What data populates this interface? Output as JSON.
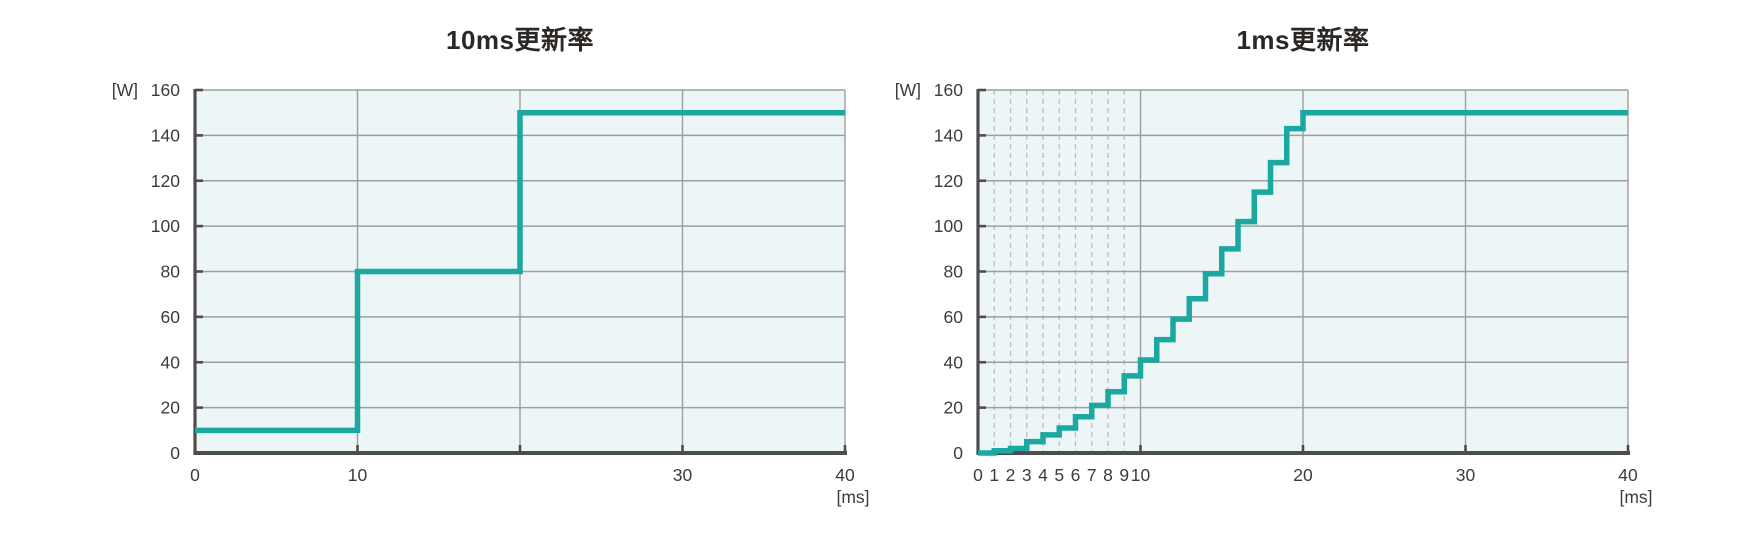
{
  "style": {
    "line_color": "#1aa8a0",
    "plot_background": "#edf6f7",
    "grid_color": "#9e9e9e",
    "dashed_grid_color": "#bcbcbc",
    "axis_color": "#4c4c4c",
    "label_color": "#3c3c3c",
    "title_color": "#2b2724",
    "page_background": "#ffffff"
  },
  "chart_data": [
    {
      "type": "line",
      "line_style": "step-hold",
      "title": "10ms更新率",
      "update_rate_ms": 10,
      "ylabel": "[W]",
      "xlabel": "[ms]",
      "xlim": [
        0,
        40
      ],
      "ylim": [
        0,
        160
      ],
      "grid": true,
      "legend": "none",
      "y_tick_labels": [
        0,
        20,
        40,
        60,
        80,
        100,
        120,
        140,
        160
      ],
      "x_solid_gridlines": [
        10,
        20,
        30,
        40
      ],
      "x_dashed_gridlines": [],
      "x_tick_marks": [
        10,
        20,
        30,
        40
      ],
      "x_tick_labels": [
        0,
        10,
        30,
        40
      ],
      "series": [
        {
          "name": "output-power-w",
          "steps": [
            {
              "t_start_ms": 0,
              "t_end_ms": 10,
              "power_w": 10
            },
            {
              "t_start_ms": 10,
              "t_end_ms": 20,
              "power_w": 80
            },
            {
              "t_start_ms": 20,
              "t_end_ms": 40,
              "power_w": 150
            }
          ]
        }
      ]
    },
    {
      "type": "line",
      "line_style": "step-hold",
      "title": "1ms更新率",
      "update_rate_ms": 1,
      "ylabel": "[W]",
      "xlabel": "[ms]",
      "xlim": [
        0,
        40
      ],
      "ylim": [
        0,
        160
      ],
      "grid": true,
      "legend": "none",
      "y_tick_labels": [
        0,
        20,
        40,
        60,
        80,
        100,
        120,
        140,
        160
      ],
      "x_solid_gridlines": [
        10,
        20,
        30,
        40
      ],
      "x_dashed_gridlines": [
        1,
        2,
        3,
        4,
        5,
        6,
        7,
        8,
        9
      ],
      "x_tick_marks": [
        10,
        20,
        30,
        40
      ],
      "x_tick_labels": [
        0,
        1,
        2,
        3,
        4,
        5,
        6,
        7,
        8,
        9,
        10,
        20,
        30,
        40
      ],
      "series": [
        {
          "name": "output-power-w",
          "step_values_w_per_ms_from_0": [
            0,
            1,
            2,
            5,
            8,
            11,
            16,
            21,
            27,
            34,
            41,
            50,
            59,
            68,
            79,
            90,
            102,
            115,
            128,
            143
          ],
          "final_hold": {
            "t_start_ms": 20,
            "t_end_ms": 40,
            "power_w": 150
          }
        }
      ]
    }
  ]
}
